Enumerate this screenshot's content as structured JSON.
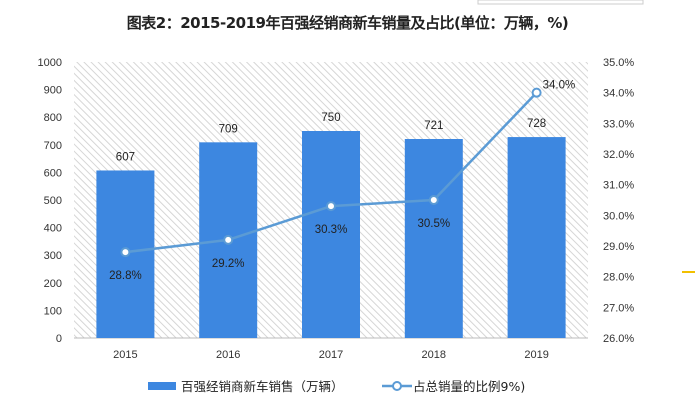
{
  "chart_data": {
    "type": "bar+line",
    "title": "图表2：2015-2019年百强经销商新车销量及占比(单位：万辆，%)",
    "categories": [
      "2015",
      "2016",
      "2017",
      "2018",
      "2019"
    ],
    "series": [
      {
        "name": "百强经销商新车销售（万辆）",
        "type": "bar",
        "axis": "left",
        "values": [
          607,
          709,
          750,
          721,
          728
        ],
        "labels": [
          "607",
          "709",
          "750",
          "721",
          "728"
        ],
        "color": "#3d87e0"
      },
      {
        "name": "占总销量的比例9%)",
        "type": "line",
        "axis": "right",
        "values": [
          28.8,
          29.2,
          30.3,
          30.5,
          34.0
        ],
        "labels": [
          "28.8%",
          "29.2%",
          "30.3%",
          "30.5%",
          "34.0%"
        ],
        "color": "#5b9bd5"
      }
    ],
    "y_left": {
      "range": [
        0,
        1000
      ],
      "ticks": [
        "0",
        "100",
        "200",
        "300",
        "400",
        "500",
        "600",
        "700",
        "800",
        "900",
        "1000"
      ]
    },
    "y_right": {
      "range": [
        26,
        35
      ],
      "ticks": [
        "26.0%",
        "27.0%",
        "28.0%",
        "29.0%",
        "30.0%",
        "31.0%",
        "32.0%",
        "33.0%",
        "34.0%",
        "35.0%"
      ]
    },
    "grid": false,
    "background": "hatched",
    "legend_position": "bottom"
  }
}
